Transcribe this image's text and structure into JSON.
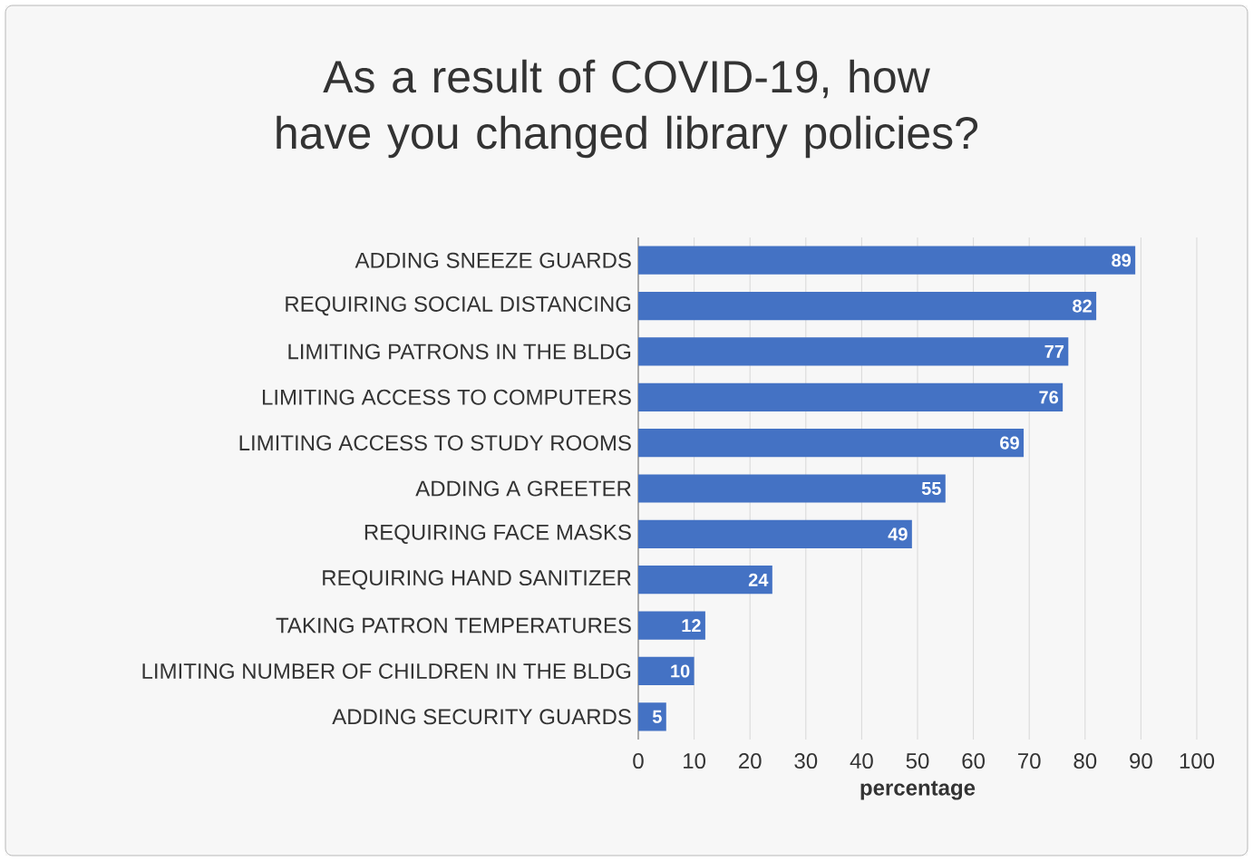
{
  "chart_data": {
    "type": "bar",
    "orientation": "horizontal",
    "title": "As a result of COVID-19, how have you changed library policies?",
    "xlabel": "percentage",
    "categories": [
      "ADDING SNEEZE GUARDS",
      "REQUIRING SOCIAL DISTANCING",
      "LIMITING PATRONS IN THE BLDG",
      "LIMITING ACCESS TO COMPUTERS",
      "LIMITING ACCESS TO STUDY ROOMS",
      "ADDING A GREETER",
      "REQUIRING FACE MASKS",
      "REQUIRING HAND SANITIZER",
      "TAKING PATRON TEMPERATURES",
      "LIMITING NUMBER OF CHILDREN IN THE BLDG",
      "ADDING SECURITY GUARDS"
    ],
    "values": [
      89,
      82,
      77,
      76,
      69,
      55,
      49,
      24,
      12,
      10,
      5
    ],
    "color": "#4472c4",
    "data_labels": true,
    "grid": "x",
    "xlim": [
      0,
      100
    ],
    "xticks": [
      0,
      10,
      20,
      30,
      40,
      50,
      60,
      70,
      80,
      90,
      100
    ]
  }
}
